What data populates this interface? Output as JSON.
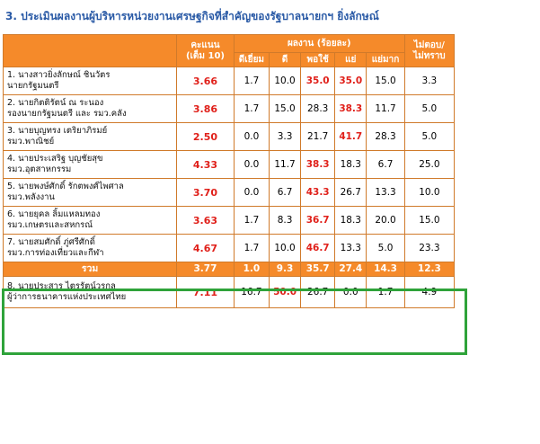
{
  "title": "3. ประเมินผลงานผู้บริหารหน่วยงานเศรษฐกิจที่สำคัญของรัฐบาลนายกฯ ยิ่งลักษณ์",
  "headers": {
    "score": "คะแนน",
    "score_sub": "(เต็ม 10)",
    "performance": "ผลงาน (ร้อยละ)",
    "no_answer": "ไม่ตอบ/",
    "no_answer_sub": "ไม่ทราบ",
    "sub": [
      "ดีเยี่ยม",
      "ดี",
      "พอใช้",
      "แย่",
      "แย่มาก"
    ]
  },
  "rows": [
    {
      "name1": "1. นางสาวยิ่งลักษณ์ ชินวัตร",
      "name2": "นายกรัฐมนตรี",
      "score": "3.66",
      "v": [
        "1.7",
        "10.0",
        "35.0",
        "35.0",
        "15.0"
      ],
      "na": "3.3"
    },
    {
      "name1": "2. นายกิตติรัตน์ ณ ระนอง",
      "name2": "รองนายกรัฐมนตรี และ รมว.คลัง",
      "score": "3.86",
      "v": [
        "1.7",
        "15.0",
        "28.3",
        "38.3",
        "11.7"
      ],
      "na": "5.0"
    },
    {
      "name1": "3. นายบุญทรง เตริยาภิรมย์",
      "name2": "รมว.พาณิชย์",
      "score": "2.50",
      "v": [
        "0.0",
        "3.3",
        "21.7",
        "41.7",
        "28.3"
      ],
      "na": "5.0"
    },
    {
      "name1": "4. นายประเสริฐ บุญชัยสุข",
      "name2": "รมว.อุตสาหกรรม",
      "score": "4.33",
      "v": [
        "0.0",
        "11.7",
        "38.3",
        "18.3",
        "6.7"
      ],
      "na": "25.0"
    },
    {
      "name1": "5. นายพงษ์ศักดิ์ รักตพงศ์ไพศาล",
      "name2": "รมว.พลังงาน",
      "score": "3.70",
      "v": [
        "0.0",
        "6.7",
        "43.3",
        "26.7",
        "13.3"
      ],
      "na": "10.0"
    },
    {
      "name1": "6. นายยุคล ลิ้มแหลมทอง",
      "name2": "รมว.เกษตรและสหกรณ์",
      "score": "3.63",
      "v": [
        "1.7",
        "8.3",
        "36.7",
        "18.3",
        "20.0"
      ],
      "na": "15.0"
    },
    {
      "name1": "7. นายสมศักดิ์ ภู่ศรีศักดิ์",
      "name2": "รมว.การท่องเที่ยวและกีฬา",
      "score": "4.67",
      "v": [
        "1.7",
        "10.0",
        "46.7",
        "13.3",
        "5.0"
      ],
      "na": "23.3"
    }
  ],
  "total": {
    "label": "รวม",
    "score": "3.77",
    "v": [
      "1.0",
      "9.3",
      "35.7",
      "27.4",
      "14.3"
    ],
    "na": "12.3"
  },
  "row8": {
    "name1": "8. นายประสาร ไตรรัตน์วรกุล",
    "name2": "ผู้ว่าการธนาคารแห่งประเทศไทย",
    "score": "7.11",
    "v": [
      "16.7",
      "50.0",
      "26.7",
      "0.0",
      "1.7"
    ],
    "na": "4.9"
  },
  "colors": {
    "header": "#f58a2a",
    "highlight": "#e0201a",
    "title": "#2a5aa6",
    "box": "#2fa33a"
  }
}
